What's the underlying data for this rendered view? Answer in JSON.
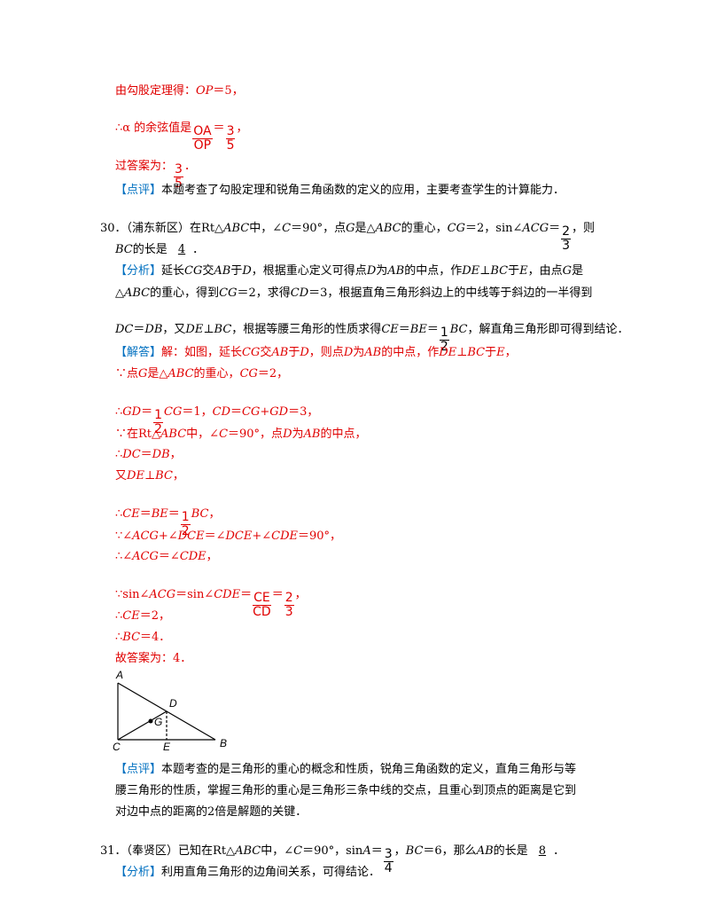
{
  "tag_color": "#0070c0",
  "lines": [
    {
      "color": "#e00000",
      "parts": [
        "由勾股定理得：",
        {
          "i": "OP"
        },
        "＝5，"
      ]
    },
    {
      "color": "#e00000",
      "parts": [
        "∴α 的余弦值是",
        {
          "num": "OA",
          "den": "OP"
        },
        "＝",
        {
          "num": "3",
          "den": "5"
        },
        "，"
      ]
    },
    {
      "color": "#e00000",
      "parts": [
        "过答案为：",
        {
          "num": "3",
          "den": "5"
        },
        "．"
      ]
    },
    {
      "color": "#000000",
      "parts": [
        {
          "tag": "【点评】"
        },
        "本题考查了勾股定理和锐角三角函数的定义的应用，主要考查学生的计算能力．"
      ]
    },
    {
      "color": "#000000",
      "parts": [
        "30．（浦东新区）在Rt△",
        {
          "i": "ABC"
        },
        "中，∠",
        {
          "i": "C"
        },
        "＝90°，点",
        {
          "i": "G"
        },
        "是△",
        {
          "i": "ABC"
        },
        "的重心，",
        {
          "i": "CG"
        },
        "＝2，sin∠",
        {
          "i": "ACG"
        },
        "＝",
        {
          "num": "2",
          "den": "3"
        },
        "，则"
      ]
    },
    {
      "color": "#000000",
      "parts": [
        {
          "i": "BC"
        },
        "的长是 ",
        {
          "u": "4"
        },
        "．"
      ]
    },
    {
      "color": "#000000",
      "parts": [
        {
          "tag": "【分析】"
        },
        "延长",
        {
          "i": "CG"
        },
        "交",
        {
          "i": "AB"
        },
        "于",
        {
          "i": "D"
        },
        "，根据重心定义可得点",
        {
          "i": "D"
        },
        "为",
        {
          "i": "AB"
        },
        "的中点，作",
        {
          "i": "DE"
        },
        "⊥",
        {
          "i": "BC"
        },
        "于",
        {
          "i": "E"
        },
        "，由点",
        {
          "i": "G"
        },
        "是"
      ]
    },
    {
      "color": "#000000",
      "parts": [
        "△",
        {
          "i": "ABC"
        },
        "的重心，得到",
        {
          "i": "CG"
        },
        "＝2，求得",
        {
          "i": "CD"
        },
        "＝3，根据直角三角形斜边上的中线等于斜边的一半得到"
      ]
    },
    {
      "color": "#000000",
      "parts": [
        {
          "i": "DC"
        },
        "＝",
        {
          "i": "DB"
        },
        "，又",
        {
          "i": "DE"
        },
        "⊥",
        {
          "i": "BC"
        },
        "，根据等腰三角形的性质求得",
        {
          "i": "CE"
        },
        "＝",
        {
          "i": "BE"
        },
        "＝",
        {
          "num": "1",
          "den": "2"
        },
        {
          "i": "BC"
        },
        "，解直角三角形即可得到结论．"
      ]
    },
    {
      "color": "#e00000",
      "parts": [
        {
          "tag": "【解答】"
        },
        "解：如图，延长",
        {
          "i": "CG"
        },
        "交",
        {
          "i": "AB"
        },
        "于",
        {
          "i": "D"
        },
        "，则点",
        {
          "i": "D"
        },
        "为",
        {
          "i": "AB"
        },
        "的中点，作",
        {
          "i": "DE"
        },
        "⊥",
        {
          "i": "BC"
        },
        "于",
        {
          "i": "E"
        },
        "，"
      ]
    },
    {
      "color": "#e00000",
      "parts": [
        "∵点",
        {
          "i": "G"
        },
        "是△",
        {
          "i": "ABC"
        },
        "的重心，",
        {
          "i": "CG"
        },
        "＝2，"
      ]
    },
    {
      "color": "#e00000",
      "parts": [
        "∴",
        {
          "i": "GD"
        },
        "＝",
        {
          "num": "1",
          "den": "2"
        },
        {
          "i": "CG"
        },
        "＝1，",
        {
          "i": "CD"
        },
        "＝",
        {
          "i": "CG"
        },
        "+",
        {
          "i": "GD"
        },
        "＝3，"
      ]
    },
    {
      "color": "#e00000",
      "parts": [
        "∵在Rt△",
        {
          "i": "ABC"
        },
        "中，∠",
        {
          "i": "C"
        },
        "＝90°，点",
        {
          "i": "D"
        },
        "为",
        {
          "i": "AB"
        },
        "的中点，"
      ]
    },
    {
      "color": "#e00000",
      "parts": [
        "∴",
        {
          "i": "DC"
        },
        "＝",
        {
          "i": "DB"
        },
        "，"
      ]
    },
    {
      "color": "#e00000",
      "parts": [
        "又",
        {
          "i": "DE"
        },
        "⊥",
        {
          "i": "BC"
        },
        "，"
      ]
    },
    {
      "color": "#e00000",
      "parts": [
        "∴",
        {
          "i": "CE"
        },
        "＝",
        {
          "i": "BE"
        },
        "＝",
        {
          "num": "1",
          "den": "2"
        },
        {
          "i": "BC"
        },
        "，"
      ]
    },
    {
      "color": "#e00000",
      "parts": [
        "∵∠",
        {
          "i": "ACG"
        },
        "+∠",
        {
          "i": "DCE"
        },
        "＝∠",
        {
          "i": "DCE"
        },
        "+∠",
        {
          "i": "CDE"
        },
        "＝90°，"
      ]
    },
    {
      "color": "#e00000",
      "parts": [
        "∴∠",
        {
          "i": "ACG"
        },
        "＝∠",
        {
          "i": "CDE"
        },
        "，"
      ]
    },
    {
      "color": "#e00000",
      "parts": [
        "∵sin∠",
        {
          "i": "ACG"
        },
        "＝sin∠",
        {
          "i": "CDE"
        },
        "＝",
        {
          "num": "CE",
          "den": "CD"
        },
        "＝",
        {
          "num": "2",
          "den": "3"
        },
        "，"
      ]
    },
    {
      "color": "#e00000",
      "parts": [
        "∴",
        {
          "i": "CE"
        },
        "＝2，"
      ]
    },
    {
      "color": "#e00000",
      "parts": [
        "∴",
        {
          "i": "BC"
        },
        "＝4．"
      ]
    },
    {
      "color": "#e00000",
      "parts": [
        "故答案为：4．"
      ]
    },
    {
      "color": "#000000",
      "parts": [
        {
          "tag": "【点评】"
        },
        "本题考查的是三角形的重心的概念和性质，锐角三角函数的定义，直角三角形与等"
      ]
    },
    {
      "color": "#000000",
      "parts": [
        "腰三角形的性质，掌握三角形的重心是三角形三条中线的交点，且重心到顶点的距离是它到"
      ]
    },
    {
      "color": "#000000",
      "parts": [
        "对边中点的距离的2倍是解题的关键．"
      ]
    },
    {
      "color": "#000000",
      "parts": [
        "31．（奉贤区）已知在Rt△",
        {
          "i": "ABC"
        },
        "中，∠",
        {
          "i": "C"
        },
        "＝90°，sin",
        {
          "i": "A"
        },
        "＝",
        {
          "num": "3",
          "den": "4"
        },
        "，",
        {
          "i": "BC"
        },
        "＝6，那么",
        {
          "i": "AB"
        },
        "的长是 ",
        {
          "u": "8"
        },
        "．"
      ]
    },
    {
      "color": "#000000",
      "parts": [
        {
          "tag": "【分析】"
        },
        "利用直角三角形的边角间关系，可得结论．"
      ]
    }
  ],
  "diagram": {
    "labels": [
      "A",
      "D",
      "G",
      "C",
      "E",
      "B"
    ]
  }
}
